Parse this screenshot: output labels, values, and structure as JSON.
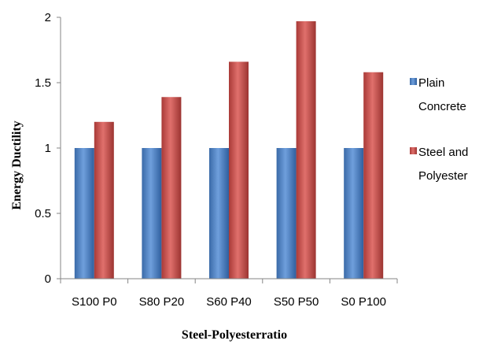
{
  "chart_data": {
    "type": "bar",
    "categories": [
      "S100 P0",
      "S80 P20",
      "S60 P40",
      "S50 P50",
      "S0 P100"
    ],
    "series": [
      {
        "name": "Plain Concrete",
        "values": [
          1,
          1,
          1,
          1,
          1
        ],
        "color": "#4a7ebb"
      },
      {
        "name": "Steel and Polyester",
        "values": [
          1.2,
          1.39,
          1.66,
          1.97,
          1.58
        ],
        "color": "#be4b48"
      }
    ],
    "xlabel": "Steel-Polyesterratio",
    "ylabel": "Energy Ductility",
    "ylim": [
      0,
      2
    ],
    "yticks": [
      "0",
      "0.5",
      "1",
      "1.5",
      "2"
    ],
    "grid": false,
    "legend_position": "right"
  }
}
